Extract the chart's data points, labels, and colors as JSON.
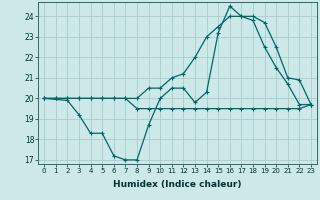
{
  "xlabel": "Humidex (Indice chaleur)",
  "bg_color": "#cce8e8",
  "grid_color": "#aacccc",
  "line_color": "#006666",
  "xlim": [
    -0.5,
    23.5
  ],
  "ylim": [
    16.8,
    24.7
  ],
  "yticks": [
    17,
    18,
    19,
    20,
    21,
    22,
    23,
    24
  ],
  "xticks": [
    0,
    1,
    2,
    3,
    4,
    5,
    6,
    7,
    8,
    9,
    10,
    11,
    12,
    13,
    14,
    15,
    16,
    17,
    18,
    19,
    20,
    21,
    22,
    23
  ],
  "line1_x": [
    0,
    1,
    2,
    3,
    4,
    5,
    6,
    7,
    8,
    9,
    10,
    11,
    12,
    13,
    14,
    15,
    16,
    17,
    18,
    19,
    20,
    21,
    22,
    23
  ],
  "line1_y": [
    20.0,
    20.0,
    20.0,
    20.0,
    20.0,
    20.0,
    20.0,
    20.0,
    19.5,
    19.5,
    19.5,
    19.5,
    19.5,
    19.5,
    19.5,
    19.5,
    19.5,
    19.5,
    19.5,
    19.5,
    19.5,
    19.5,
    19.5,
    19.7
  ],
  "line2_x": [
    0,
    1,
    2,
    3,
    4,
    5,
    6,
    7,
    8,
    9,
    10,
    11,
    12,
    13,
    14,
    15,
    16,
    17,
    18,
    19,
    20,
    21,
    22,
    23
  ],
  "line2_y": [
    20.0,
    20.0,
    20.0,
    20.0,
    20.0,
    20.0,
    20.0,
    20.0,
    20.0,
    20.5,
    20.5,
    21.0,
    21.2,
    22.0,
    23.0,
    23.5,
    24.0,
    24.0,
    23.8,
    22.5,
    21.5,
    20.7,
    19.7,
    19.7
  ],
  "line3_x": [
    0,
    2,
    3,
    4,
    5,
    6,
    7,
    8,
    9,
    10,
    11,
    12,
    13,
    14,
    15,
    16,
    17,
    18,
    19,
    20,
    21,
    22,
    23
  ],
  "line3_y": [
    20.0,
    19.9,
    19.2,
    18.3,
    18.3,
    17.2,
    17.0,
    17.0,
    18.7,
    20.0,
    20.5,
    20.5,
    19.8,
    20.3,
    23.2,
    24.5,
    24.0,
    24.0,
    23.7,
    22.5,
    21.0,
    20.9,
    19.7
  ]
}
